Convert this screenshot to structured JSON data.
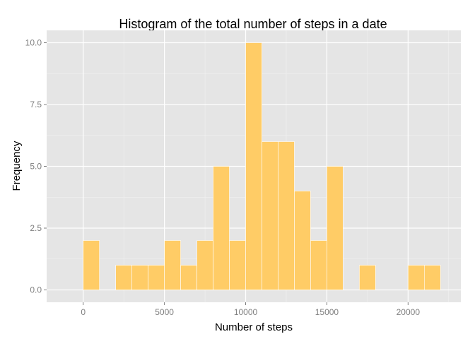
{
  "chart_data": {
    "type": "bar",
    "title": "Histogram of the total number of steps in a date",
    "xlabel": "Number of steps",
    "ylabel": "Frequency",
    "bin_width": 1000,
    "bins": [
      {
        "start": 0,
        "end": 1000,
        "count": 2
      },
      {
        "start": 1000,
        "end": 2000,
        "count": 0
      },
      {
        "start": 2000,
        "end": 3000,
        "count": 1
      },
      {
        "start": 3000,
        "end": 4000,
        "count": 1
      },
      {
        "start": 4000,
        "end": 5000,
        "count": 1
      },
      {
        "start": 5000,
        "end": 6000,
        "count": 2
      },
      {
        "start": 6000,
        "end": 7000,
        "count": 1
      },
      {
        "start": 7000,
        "end": 8000,
        "count": 2
      },
      {
        "start": 8000,
        "end": 9000,
        "count": 5
      },
      {
        "start": 9000,
        "end": 10000,
        "count": 2
      },
      {
        "start": 10000,
        "end": 11000,
        "count": 10
      },
      {
        "start": 11000,
        "end": 12000,
        "count": 6
      },
      {
        "start": 12000,
        "end": 13000,
        "count": 6
      },
      {
        "start": 13000,
        "end": 14000,
        "count": 4
      },
      {
        "start": 14000,
        "end": 15000,
        "count": 2
      },
      {
        "start": 15000,
        "end": 16000,
        "count": 5
      },
      {
        "start": 16000,
        "end": 17000,
        "count": 0
      },
      {
        "start": 17000,
        "end": 18000,
        "count": 1
      },
      {
        "start": 18000,
        "end": 19000,
        "count": 0
      },
      {
        "start": 19000,
        "end": 20000,
        "count": 0
      },
      {
        "start": 20000,
        "end": 21000,
        "count": 1
      },
      {
        "start": 21000,
        "end": 22000,
        "count": 1
      }
    ],
    "xlim": [
      -2250,
      23250
    ],
    "ylim": [
      -0.5,
      10.5
    ],
    "x_ticks": [
      0,
      5000,
      10000,
      15000,
      20000
    ],
    "x_tick_labels": [
      "0",
      "5000",
      "10000",
      "15000",
      "20000"
    ],
    "y_ticks": [
      0,
      2.5,
      5,
      7.5,
      10
    ],
    "y_tick_labels": [
      "0.0",
      "2.5",
      "5.0",
      "7.5",
      "10.0"
    ],
    "grid": true,
    "legend": "none",
    "colors": {
      "bar_fill": "#FFCC66",
      "bar_outline": "#FFFFFF",
      "panel_background": "#E5E5E5",
      "grid_major": "#FFFFFF",
      "grid_minor": "#F2F2F2"
    }
  }
}
